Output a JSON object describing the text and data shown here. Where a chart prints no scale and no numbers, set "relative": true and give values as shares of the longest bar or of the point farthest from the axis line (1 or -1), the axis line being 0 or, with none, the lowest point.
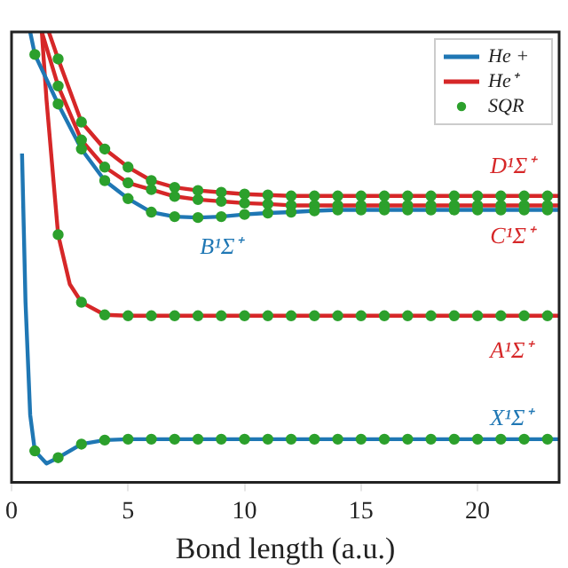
{
  "chart_data": {
    "type": "line",
    "xlabel": "Bond length (a.u.)",
    "relative": true,
    "xlim": [
      0,
      23.5
    ],
    "xticks": [
      0,
      5,
      10,
      15,
      20
    ],
    "legend": "top right",
    "grid": false,
    "series": [
      {
        "name": "He +",
        "color": "#1f77b4",
        "x": [
          0.45,
          0.6,
          0.8,
          1,
          1.5,
          2,
          3,
          4,
          5,
          23.5
        ],
        "values": [
          0.73,
          0.4,
          0.15,
          0.07,
          0.042,
          0.055,
          0.085,
          0.094,
          0.096,
          0.096
        ]
      },
      {
        "color": "#1f77b4",
        "x": [
          0.8,
          1,
          2,
          3,
          4,
          5,
          6,
          7,
          8,
          9,
          10,
          11,
          12,
          13,
          14,
          23.5
        ],
        "values": [
          1,
          0.95,
          0.84,
          0.74,
          0.67,
          0.63,
          0.6,
          0.59,
          0.588,
          0.59,
          0.595,
          0.598,
          0.6,
          0.603,
          0.605,
          0.605
        ]
      },
      {
        "name": "He⁺",
        "color": "#d62728",
        "x": [
          1.3,
          1.5,
          2,
          2.5,
          3,
          4,
          5,
          23.5
        ],
        "values": [
          1,
          0.85,
          0.55,
          0.44,
          0.4,
          0.372,
          0.37,
          0.37
        ]
      },
      {
        "color": "#d62728",
        "x": [
          1.3,
          2,
          3,
          4,
          5,
          6,
          7,
          8,
          9,
          10,
          11,
          12,
          23.5
        ],
        "values": [
          1,
          0.88,
          0.76,
          0.7,
          0.665,
          0.65,
          0.635,
          0.628,
          0.624,
          0.62,
          0.618,
          0.615,
          0.615
        ]
      },
      {
        "color": "#d62728",
        "x": [
          1.6,
          2,
          3,
          4,
          5,
          6,
          7,
          8,
          9,
          10,
          11,
          12,
          23.5
        ],
        "values": [
          1,
          0.94,
          0.8,
          0.74,
          0.7,
          0.67,
          0.655,
          0.648,
          0.644,
          0.64,
          0.638,
          0.636,
          0.636
        ]
      },
      {
        "name": "SQR",
        "type": "scatter",
        "color": "#2ca02c",
        "x": [
          1,
          2,
          3,
          4,
          5,
          6,
          7,
          8,
          9,
          10,
          11,
          12,
          13,
          14,
          15,
          16,
          17,
          18,
          19,
          20,
          21,
          22,
          23
        ],
        "values": [
          0.07,
          0.055,
          0.085,
          0.094,
          0.096,
          0.096,
          0.096,
          0.096,
          0.096,
          0.096,
          0.096,
          0.096,
          0.096,
          0.096,
          0.096,
          0.096,
          0.096,
          0.096,
          0.096,
          0.096,
          0.096,
          0.096,
          0.096
        ]
      },
      {
        "type": "scatter",
        "color": "#2ca02c",
        "x": [
          2,
          3,
          4,
          5,
          6,
          7,
          8,
          9,
          10,
          11,
          12,
          13,
          14,
          15,
          16,
          17,
          18,
          19,
          20,
          21,
          22,
          23
        ],
        "values": [
          0.55,
          0.4,
          0.372,
          0.37,
          0.37,
          0.37,
          0.37,
          0.37,
          0.37,
          0.37,
          0.37,
          0.37,
          0.37,
          0.37,
          0.37,
          0.37,
          0.37,
          0.37,
          0.37,
          0.37,
          0.37,
          0.37
        ]
      },
      {
        "type": "scatter",
        "color": "#2ca02c",
        "x": [
          1,
          2,
          3,
          4,
          5,
          6,
          7,
          8,
          9,
          10,
          11,
          12,
          13,
          14,
          15,
          16,
          17,
          18,
          19,
          20,
          21,
          22,
          23
        ],
        "values": [
          0.95,
          0.84,
          0.74,
          0.67,
          0.63,
          0.6,
          0.59,
          0.588,
          0.59,
          0.595,
          0.598,
          0.6,
          0.603,
          0.605,
          0.605,
          0.605,
          0.605,
          0.605,
          0.605,
          0.605,
          0.605,
          0.605,
          0.605
        ]
      },
      {
        "type": "scatter",
        "color": "#2ca02c",
        "x": [
          2,
          3,
          4,
          5,
          6,
          7,
          8,
          9,
          10,
          11,
          12,
          13,
          14,
          15,
          16,
          17,
          18,
          19,
          20,
          21,
          22,
          23
        ],
        "values": [
          0.88,
          0.76,
          0.7,
          0.665,
          0.65,
          0.635,
          0.628,
          0.624,
          0.62,
          0.618,
          0.615,
          0.615,
          0.615,
          0.615,
          0.615,
          0.615,
          0.615,
          0.615,
          0.615,
          0.615,
          0.615,
          0.615
        ]
      },
      {
        "type": "scatter",
        "color": "#2ca02c",
        "x": [
          2,
          3,
          4,
          5,
          6,
          7,
          8,
          9,
          10,
          11,
          12,
          13,
          14,
          15,
          16,
          17,
          18,
          19,
          20,
          21,
          22,
          23
        ],
        "values": [
          0.94,
          0.8,
          0.74,
          0.7,
          0.67,
          0.655,
          0.648,
          0.644,
          0.64,
          0.638,
          0.636,
          0.636,
          0.636,
          0.636,
          0.636,
          0.636,
          0.636,
          0.636,
          0.636,
          0.636,
          0.636,
          0.636
        ]
      }
    ],
    "annotations": [
      "D¹Σ⁺",
      "C¹Σ⁺",
      "B¹Σ⁺",
      "A¹Σ⁺",
      "X¹Σ⁺"
    ]
  }
}
